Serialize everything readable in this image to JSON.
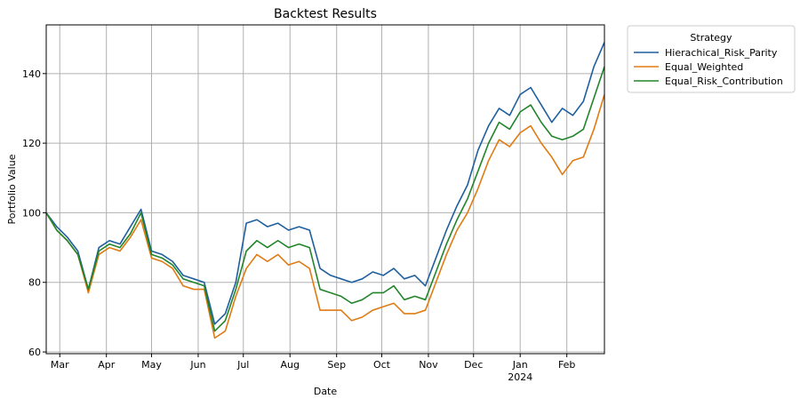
{
  "chart_data": {
    "type": "line",
    "title": "Backtest Results",
    "xlabel": "Date",
    "ylabel": "Portfolio Value",
    "ylim": [
      59.5,
      154
    ],
    "yticks": [
      60,
      80,
      100,
      120,
      140
    ],
    "xlim": [
      "2023-02-20",
      "2024-02-26"
    ],
    "xticks": [
      {
        "date": "2023-03-01",
        "label": "Mar"
      },
      {
        "date": "2023-04-01",
        "label": "Apr"
      },
      {
        "date": "2023-05-01",
        "label": "May"
      },
      {
        "date": "2023-06-01",
        "label": "Jun"
      },
      {
        "date": "2023-07-01",
        "label": "Jul"
      },
      {
        "date": "2023-08-01",
        "label": "Aug"
      },
      {
        "date": "2023-09-01",
        "label": "Sep"
      },
      {
        "date": "2023-10-01",
        "label": "Oct"
      },
      {
        "date": "2023-11-01",
        "label": "Nov"
      },
      {
        "date": "2023-12-01",
        "label": "Dec"
      },
      {
        "date": "2024-01-01",
        "label": "Jan",
        "sublabel": "2024"
      },
      {
        "date": "2024-02-01",
        "label": "Feb"
      }
    ],
    "grid": true,
    "legend": {
      "title": "Strategy",
      "placement": "outside-top-right"
    },
    "x": [
      "2023-02-20",
      "2023-02-27",
      "2023-03-06",
      "2023-03-13",
      "2023-03-20",
      "2023-03-27",
      "2023-04-03",
      "2023-04-10",
      "2023-04-17",
      "2023-04-24",
      "2023-05-01",
      "2023-05-08",
      "2023-05-15",
      "2023-05-22",
      "2023-05-29",
      "2023-06-05",
      "2023-06-12",
      "2023-06-19",
      "2023-06-26",
      "2023-07-03",
      "2023-07-10",
      "2023-07-17",
      "2023-07-24",
      "2023-07-31",
      "2023-08-07",
      "2023-08-14",
      "2023-08-21",
      "2023-08-28",
      "2023-09-04",
      "2023-09-11",
      "2023-09-18",
      "2023-09-25",
      "2023-10-02",
      "2023-10-09",
      "2023-10-16",
      "2023-10-23",
      "2023-10-30",
      "2023-11-06",
      "2023-11-13",
      "2023-11-20",
      "2023-11-27",
      "2023-12-04",
      "2023-12-11",
      "2023-12-18",
      "2023-12-25",
      "2024-01-01",
      "2024-01-08",
      "2024-01-15",
      "2024-01-22",
      "2024-01-29",
      "2024-02-05",
      "2024-02-12",
      "2024-02-19",
      "2024-02-26"
    ],
    "series": [
      {
        "name": "Hierachical_Risk_Parity",
        "color": "#1f5f9e",
        "values": [
          100,
          96,
          93,
          89,
          78,
          90,
          92,
          91,
          96,
          101,
          89,
          88,
          86,
          82,
          81,
          80,
          68,
          71,
          80,
          97,
          98,
          96,
          97,
          95,
          96,
          95,
          84,
          82,
          81,
          80,
          81,
          83,
          82,
          84,
          81,
          82,
          79,
          87,
          95,
          102,
          108,
          118,
          125,
          130,
          128,
          134,
          136,
          131,
          126,
          130,
          128,
          132,
          142,
          149
        ]
      },
      {
        "name": "Equal_Weighted",
        "color": "#e07b13",
        "values": [
          100,
          95,
          92,
          88,
          77,
          88,
          90,
          89,
          93,
          98,
          87,
          86,
          84,
          79,
          78,
          78,
          64,
          66,
          76,
          84,
          88,
          86,
          88,
          85,
          86,
          84,
          72,
          72,
          72,
          69,
          70,
          72,
          73,
          74,
          71,
          71,
          72,
          80,
          88,
          95,
          100,
          107,
          115,
          121,
          119,
          123,
          125,
          120,
          116,
          111,
          115,
          116,
          124,
          134
        ]
      },
      {
        "name": "Equal_Risk_Contribution",
        "color": "#22852a",
        "values": [
          100,
          95,
          92,
          88,
          78,
          89,
          91,
          90,
          94,
          100,
          88,
          87,
          85,
          81,
          80,
          79,
          66,
          69,
          78,
          89,
          92,
          90,
          92,
          90,
          91,
          90,
          78,
          77,
          76,
          74,
          75,
          77,
          77,
          79,
          75,
          76,
          75,
          83,
          91,
          98,
          104,
          112,
          120,
          126,
          124,
          129,
          131,
          126,
          122,
          121,
          122,
          124,
          133,
          142
        ]
      }
    ]
  }
}
